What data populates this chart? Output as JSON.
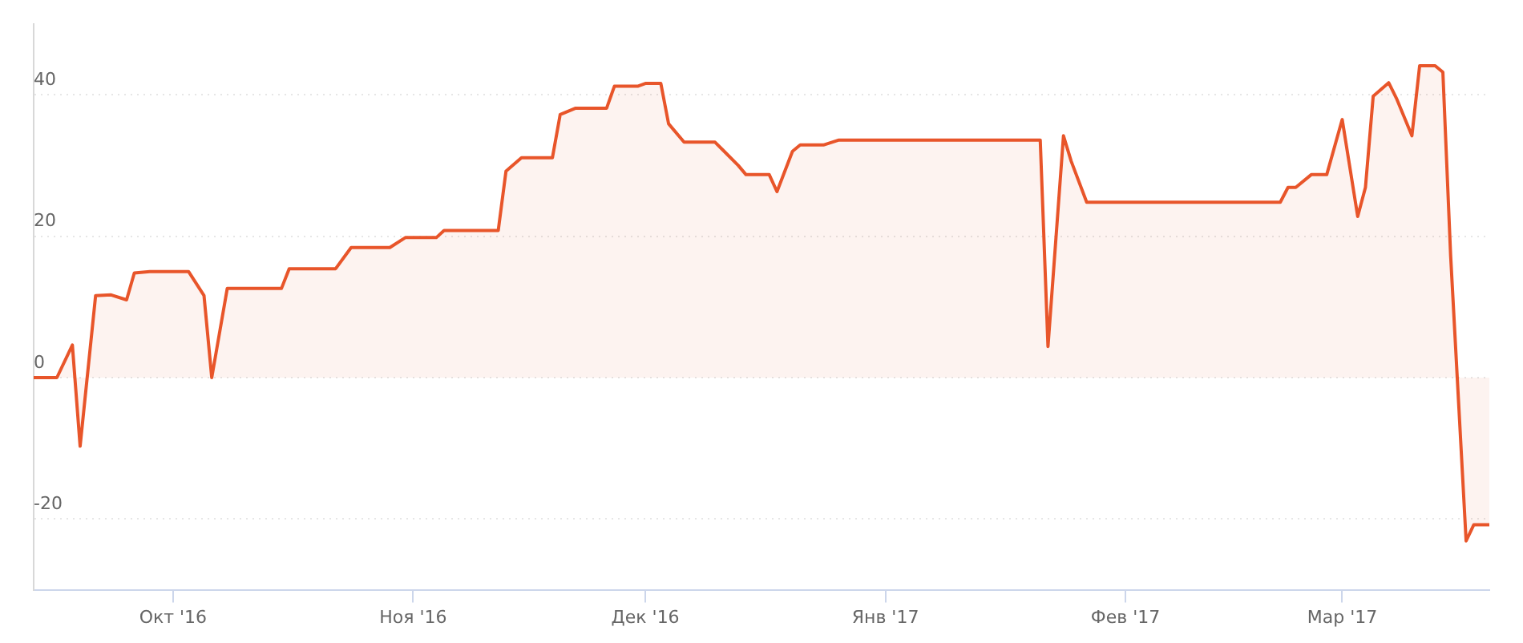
{
  "chart_data": {
    "type": "area",
    "x": [
      "2016-09-13",
      "2016-09-16",
      "2016-09-18",
      "2016-09-19",
      "2016-09-21",
      "2016-09-23",
      "2016-09-25",
      "2016-09-26",
      "2016-09-28",
      "2016-10-03",
      "2016-10-05",
      "2016-10-06",
      "2016-10-08",
      "2016-10-15",
      "2016-10-16",
      "2016-10-22",
      "2016-10-24",
      "2016-10-29",
      "2016-10-31",
      "2016-11-04",
      "2016-11-05",
      "2016-11-12",
      "2016-11-13",
      "2016-11-15",
      "2016-11-19",
      "2016-11-20",
      "2016-11-22",
      "2016-11-26",
      "2016-11-27",
      "2016-11-30",
      "2016-12-01",
      "2016-12-03",
      "2016-12-04",
      "2016-12-06",
      "2016-12-10",
      "2016-12-11",
      "2016-12-13",
      "2016-12-14",
      "2016-12-17",
      "2016-12-18",
      "2016-12-20",
      "2016-12-21",
      "2016-12-24",
      "2016-12-26",
      "2017-01-21",
      "2017-01-22",
      "2017-01-24",
      "2017-01-25",
      "2017-01-27",
      "2017-02-21",
      "2017-02-22",
      "2017-02-23",
      "2017-02-25",
      "2017-02-27",
      "2017-03-01",
      "2017-03-03",
      "2017-03-04",
      "2017-03-05",
      "2017-03-07",
      "2017-03-08",
      "2017-03-10",
      "2017-03-11",
      "2017-03-13",
      "2017-03-14",
      "2017-03-15",
      "2017-03-17",
      "2017-03-18",
      "2017-03-20"
    ],
    "series": [
      {
        "color": "#e8552a",
        "values": [
          0,
          0,
          4.6,
          -9.7,
          11.6,
          11.7,
          11,
          14.8,
          15,
          15,
          11.6,
          0,
          12.6,
          12.6,
          15.4,
          15.4,
          18.4,
          18.4,
          19.8,
          19.8,
          20.8,
          20.8,
          29.2,
          31.1,
          31.1,
          37.2,
          38.1,
          38.1,
          41.2,
          41.2,
          41.6,
          41.6,
          35.9,
          33.3,
          33.3,
          32.2,
          30,
          28.7,
          28.7,
          26.3,
          32,
          32.9,
          32.9,
          33.6,
          33.6,
          4.4,
          34.2,
          30.6,
          24.8,
          24.8,
          26.9,
          26.9,
          28.7,
          28.7,
          36.5,
          22.8,
          26.9,
          39.8,
          41.7,
          39.5,
          34.2,
          44.1,
          44.1,
          43.2,
          17.3,
          -23.1,
          -20.8,
          -20.8
        ]
      }
    ],
    "xlim": [
      "2016-09-13",
      "2017-03-20"
    ],
    "xticks": [
      {
        "value": "2016-10-01",
        "label": "Окт '16"
      },
      {
        "value": "2016-11-01",
        "label": "Ноя '16"
      },
      {
        "value": "2016-12-01",
        "label": "Дек '16"
      },
      {
        "value": "2017-01-01",
        "label": "Янв '17"
      },
      {
        "value": "2017-02-01",
        "label": "Фев '17"
      },
      {
        "value": "2017-03-01",
        "label": "Мар '17"
      }
    ],
    "ylim": [
      -30,
      50
    ],
    "yticks": [
      -20,
      0,
      20,
      40
    ],
    "grid": "y",
    "legend": false
  }
}
